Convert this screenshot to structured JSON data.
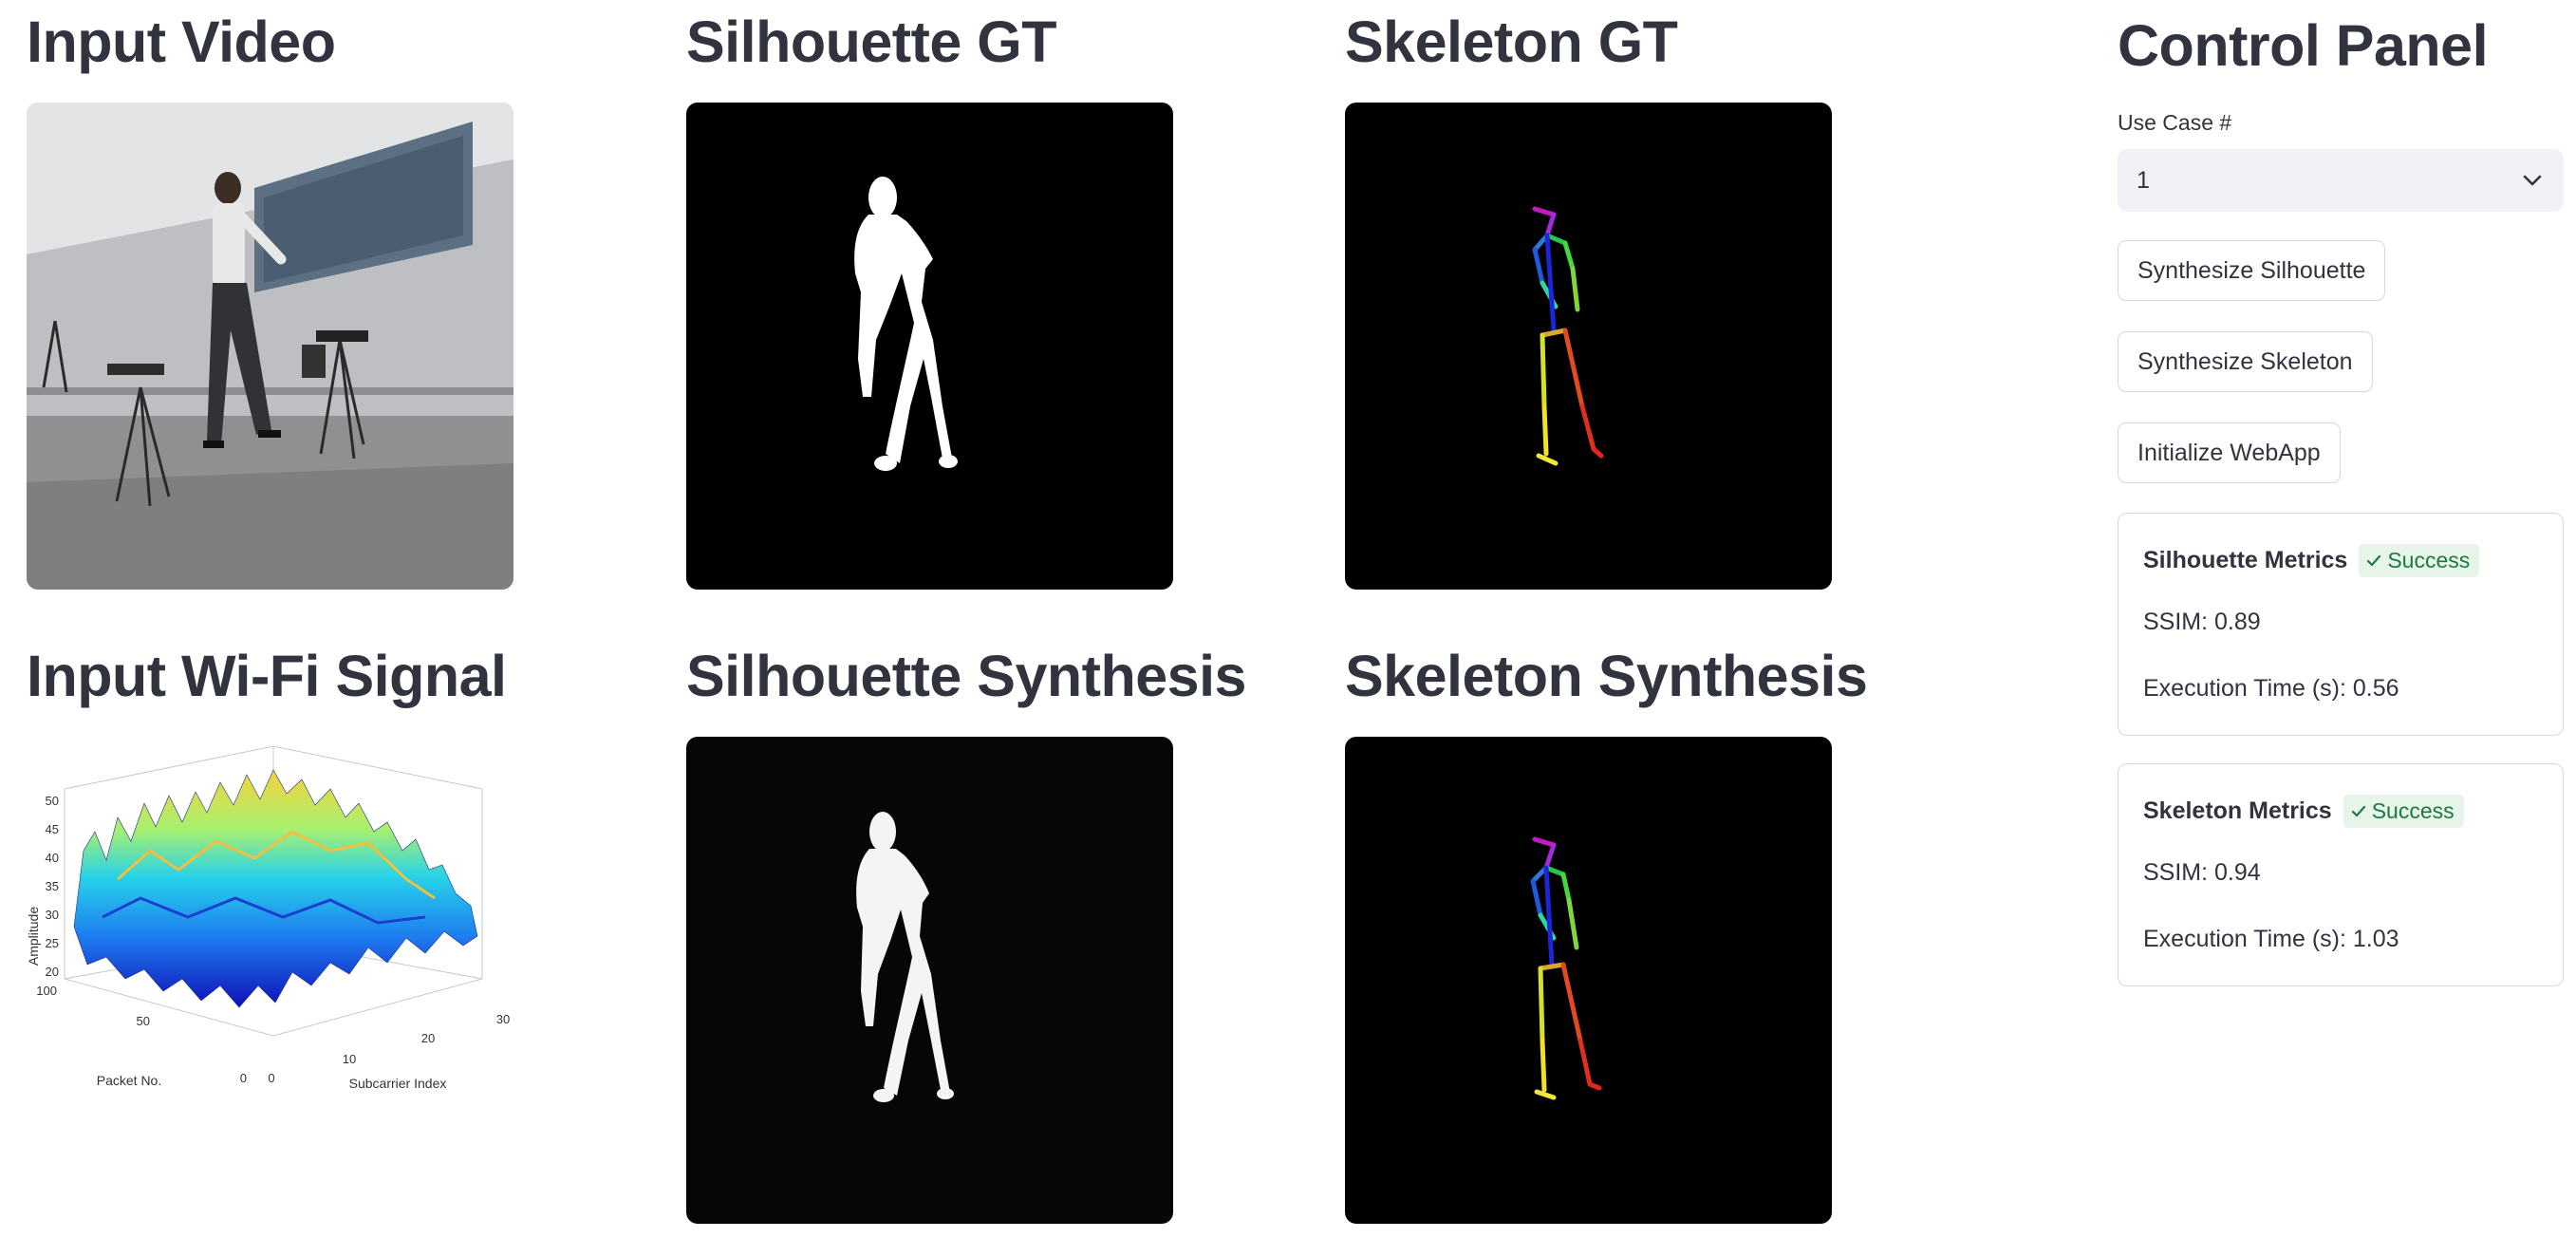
{
  "headings": {
    "input_video": "Input Video",
    "silhouette_gt": "Silhouette GT",
    "skeleton_gt": "Skeleton GT",
    "input_wifi": "Input Wi-Fi Signal",
    "silhouette_synthesis": "Silhouette Synthesis",
    "skeleton_synthesis": "Skeleton Synthesis"
  },
  "wifi_plot": {
    "ylabel": "Amplitude",
    "xlabel_left": "Packet No.",
    "xlabel_right": "Subcarrier Index",
    "y_ticks": [
      "50",
      "45",
      "40",
      "35",
      "30",
      "25",
      "20"
    ],
    "packet_ticks": [
      "100",
      "50",
      "0"
    ],
    "subcarrier_ticks": [
      "0",
      "10",
      "20",
      "30"
    ]
  },
  "control_panel": {
    "title": "Control Panel",
    "use_case_label": "Use Case #",
    "use_case_value": "1",
    "buttons": {
      "synth_silhouette": "Synthesize Silhouette",
      "synth_skeleton": "Synthesize Skeleton",
      "init_webapp": "Initialize WebApp"
    },
    "silhouette_metrics": {
      "title": "Silhouette Metrics",
      "status": "Success",
      "ssim": "SSIM: 0.89",
      "exec_time": "Execution Time (s): 0.56"
    },
    "skeleton_metrics": {
      "title": "Skeleton Metrics",
      "status": "Success",
      "ssim": "SSIM: 0.94",
      "exec_time": "Execution Time (s): 1.03"
    }
  },
  "colors": {
    "accent_success_bg": "#e7f4ea",
    "accent_success_text": "#1c7a3d",
    "select_bg": "#f0f2f6"
  }
}
